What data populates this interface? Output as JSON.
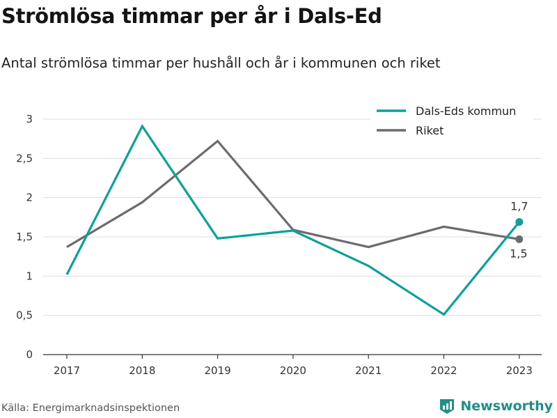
{
  "title": "Strömlösa timmar per år i Dals-Ed",
  "subtitle": "Antal strömlösa timmar per hushåll och år i kommunen och riket",
  "source": "Källa: Energimarknadsinspektionen",
  "brand": {
    "name": "Newsworthy",
    "icon": "newsworthy-logo-icon",
    "color": "#1f8f88"
  },
  "chart_data": {
    "type": "line",
    "x": [
      "2017",
      "2018",
      "2019",
      "2020",
      "2021",
      "2022",
      "2023"
    ],
    "yticks": [
      "0",
      "0,5",
      "1",
      "1,5",
      "2",
      "2,5",
      "3"
    ],
    "ylim": [
      0,
      3
    ],
    "grid": true,
    "legend_position": "top-right",
    "series": [
      {
        "name": "Dals-Eds kommun",
        "color": "#0aa19a",
        "values": [
          1.02,
          2.91,
          1.48,
          1.58,
          1.13,
          0.51,
          1.69
        ],
        "end_label": "1,7"
      },
      {
        "name": "Riket",
        "color": "#6b6b70",
        "values": [
          1.37,
          1.94,
          2.72,
          1.59,
          1.37,
          1.63,
          1.47
        ],
        "end_label": "1,5"
      }
    ]
  }
}
